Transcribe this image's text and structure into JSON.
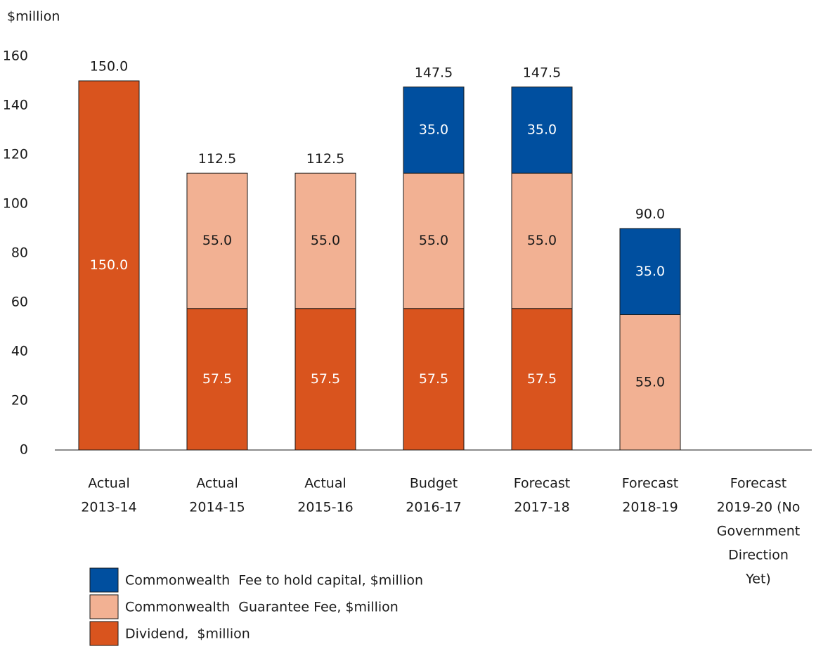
{
  "chart_data": {
    "type": "stacked_bar",
    "y_label": "$million",
    "categories": [
      [
        "Actual",
        "2013-14"
      ],
      [
        "Actual",
        "2014-15"
      ],
      [
        "Actual",
        "2015-16"
      ],
      [
        "Budget",
        "2016-17"
      ],
      [
        "Forecast",
        "2017-18"
      ],
      [
        "Forecast",
        "2018-19"
      ],
      [
        "Forecast",
        "2019-20 (No",
        "Government",
        "Direction",
        "Yet)"
      ]
    ],
    "series": [
      {
        "name": "Dividend,  $million",
        "color": "#d9541e",
        "label_color": "#ffffff",
        "values": [
          150,
          57.5,
          57.5,
          57.5,
          57.5,
          null,
          null
        ],
        "value_labels": [
          "150.0",
          "57.5",
          "57.5",
          "57.5",
          "57.5",
          null,
          null
        ]
      },
      {
        "name": "Commonwealth  Guarantee Fee, $million",
        "color": "#f2b193",
        "label_color": "#1a1a1a",
        "values": [
          null,
          55,
          55,
          55,
          55,
          55,
          null
        ],
        "value_labels": [
          null,
          "55.0",
          "55.0",
          "55.0",
          "55.0",
          "55.0",
          null
        ]
      },
      {
        "name": "Commonwealth  Fee to hold capital, $million",
        "color": "#004f9f",
        "label_color": "#ffffff",
        "values": [
          null,
          null,
          null,
          35,
          35,
          35,
          null
        ],
        "value_labels": [
          null,
          null,
          null,
          "35.0",
          "35.0",
          "35.0",
          null
        ]
      }
    ],
    "totals": [
      150,
      112.5,
      112.5,
      147.5,
      147.5,
      90,
      null
    ],
    "total_labels": [
      "150.0",
      "112.5",
      "112.5",
      "147.5",
      "147.5",
      "90.0",
      null
    ],
    "ylim": [
      0,
      160
    ],
    "yticks": [
      0,
      20,
      40,
      60,
      80,
      100,
      120,
      140,
      160
    ],
    "grid": false
  }
}
